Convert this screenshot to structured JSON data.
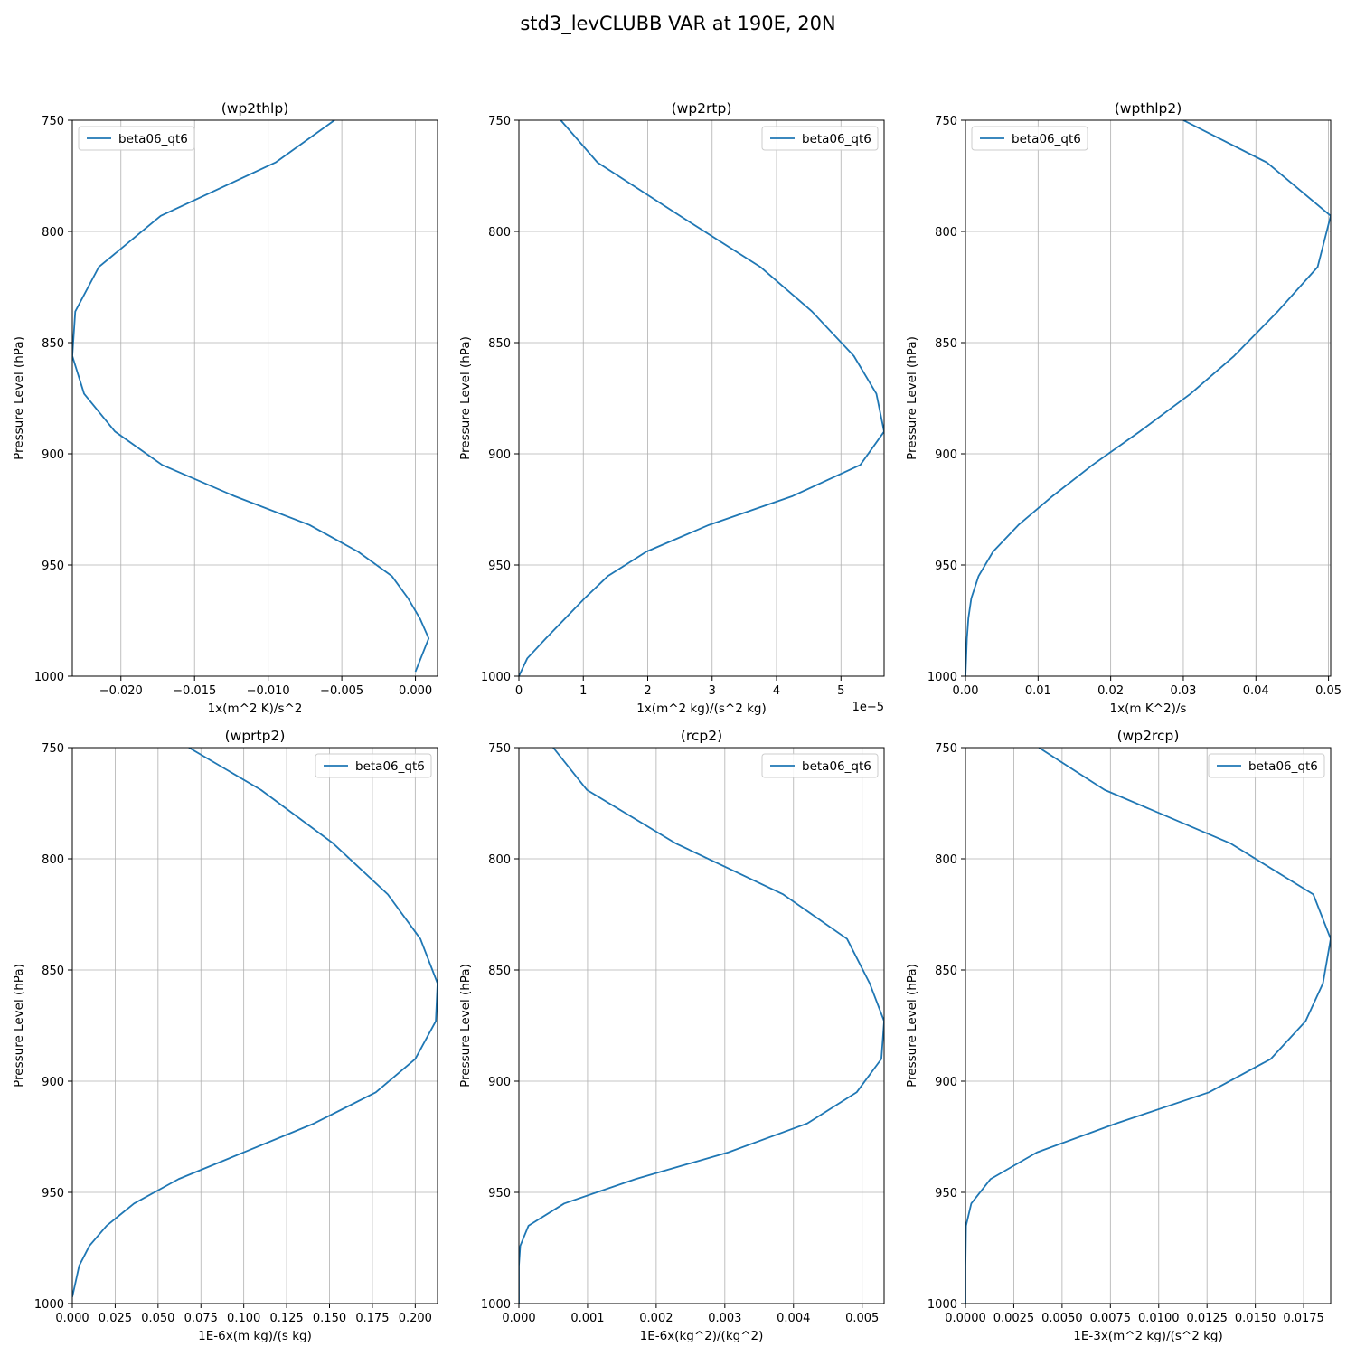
{
  "figure": {
    "title": "std3_levCLUBB VAR at 190E, 20N"
  },
  "colors": {
    "series": "#1f77b4",
    "grid": "#b0b0b0",
    "axis": "#000000",
    "legend_border": "#cccccc"
  },
  "chart_data": [
    {
      "type": "line",
      "title": "(wp2thlp)",
      "xlabel": "1x(m^2 K)/s^2",
      "ylabel": "Pressure Level (hPa)",
      "offset_text": "",
      "xlim": [
        -0.0233,
        0.0015
      ],
      "ylim": [
        1000,
        750
      ],
      "y_inverted": true,
      "xticks": [
        -0.02,
        -0.015,
        -0.01,
        -0.005,
        0.0
      ],
      "xtick_labels": [
        "−0.020",
        "−0.015",
        "−0.010",
        "−0.005",
        "0.000"
      ],
      "yticks": [
        750,
        800,
        850,
        900,
        950,
        1000
      ],
      "ytick_labels": [
        "750",
        "800",
        "850",
        "900",
        "950",
        "1000"
      ],
      "grid": true,
      "legend": "upper left",
      "series": [
        {
          "name": "beta06_qt6",
          "x": [
            -0.0055,
            -0.0095,
            -0.0173,
            -0.0215,
            -0.0231,
            -0.0233,
            -0.0225,
            -0.0204,
            -0.0172,
            -0.0123,
            -0.0072,
            -0.0039,
            -0.0016,
            -0.0005,
            0.0003,
            0.0009,
            0.0
          ],
          "y": [
            750,
            769,
            793,
            816,
            836,
            856,
            873,
            890,
            905,
            919,
            932,
            944,
            955,
            965,
            974,
            983,
            998
          ]
        }
      ]
    },
    {
      "type": "line",
      "title": "(wp2rtp)",
      "xlabel": "1x(m^2 kg)/(s^2 kg)",
      "ylabel": "Pressure Level (hPa)",
      "offset_text": "1e−5",
      "xlim": [
        0,
        5.67
      ],
      "ylim": [
        1000,
        750
      ],
      "y_inverted": true,
      "xticks": [
        0,
        1,
        2,
        3,
        4,
        5
      ],
      "xtick_labels": [
        "0",
        "1",
        "2",
        "3",
        "4",
        "5"
      ],
      "yticks": [
        750,
        800,
        850,
        900,
        950,
        1000
      ],
      "ytick_labels": [
        "750",
        "800",
        "850",
        "900",
        "950",
        "1000"
      ],
      "grid": true,
      "legend": "upper right",
      "series": [
        {
          "name": "beta06_qt6",
          "x": [
            0.65,
            1.22,
            2.5,
            3.75,
            4.55,
            5.2,
            5.55,
            5.67,
            5.3,
            4.25,
            2.95,
            1.98,
            1.38,
            1.02,
            0.72,
            0.42,
            0.13,
            0.0
          ],
          "y": [
            750,
            769,
            793,
            816,
            836,
            856,
            873,
            890,
            905,
            919,
            932,
            944,
            955,
            965,
            974,
            983,
            992,
            1000
          ]
        }
      ]
    },
    {
      "type": "line",
      "title": "(wpthlp2)",
      "xlabel": "1x(m K^2)/s",
      "ylabel": "Pressure Level (hPa)",
      "offset_text": "",
      "xlim": [
        0,
        0.0503
      ],
      "ylim": [
        1000,
        750
      ],
      "y_inverted": true,
      "xticks": [
        0.0,
        0.01,
        0.02,
        0.03,
        0.04,
        0.05
      ],
      "xtick_labels": [
        "0.00",
        "0.01",
        "0.02",
        "0.03",
        "0.04",
        "0.05"
      ],
      "yticks": [
        750,
        800,
        850,
        900,
        950,
        1000
      ],
      "ytick_labels": [
        "750",
        "800",
        "850",
        "900",
        "950",
        "1000"
      ],
      "grid": true,
      "legend": "upper left",
      "series": [
        {
          "name": "beta06_qt6",
          "x": [
            0.03,
            0.0415,
            0.0503,
            0.0485,
            0.043,
            0.037,
            0.031,
            0.024,
            0.0175,
            0.012,
            0.0073,
            0.0038,
            0.0018,
            0.0008,
            0.0004,
            0.0002,
            0.0001,
            0.0
          ],
          "y": [
            750,
            769,
            793,
            816,
            836,
            856,
            873,
            890,
            905,
            919,
            932,
            944,
            955,
            965,
            974,
            983,
            992,
            1000
          ]
        }
      ]
    },
    {
      "type": "line",
      "title": "(wprtp2)",
      "xlabel": "1E-6x(m kg)/(s kg)",
      "ylabel": "Pressure Level (hPa)",
      "offset_text": "",
      "xlim": [
        0,
        0.213
      ],
      "ylim": [
        1000,
        750
      ],
      "y_inverted": true,
      "xticks": [
        0.0,
        0.025,
        0.05,
        0.075,
        0.1,
        0.125,
        0.15,
        0.175,
        0.2
      ],
      "xtick_labels": [
        "0.000",
        "0.025",
        "0.050",
        "0.075",
        "0.100",
        "0.125",
        "0.150",
        "0.175",
        "0.200"
      ],
      "yticks": [
        750,
        800,
        850,
        900,
        950,
        1000
      ],
      "ytick_labels": [
        "750",
        "800",
        "850",
        "900",
        "950",
        "1000"
      ],
      "grid": true,
      "legend": "upper right",
      "series": [
        {
          "name": "beta06_qt6",
          "x": [
            0.068,
            0.11,
            0.152,
            0.184,
            0.203,
            0.213,
            0.212,
            0.2,
            0.177,
            0.141,
            0.1,
            0.062,
            0.036,
            0.02,
            0.01,
            0.004,
            0.0
          ],
          "y": [
            750,
            769,
            793,
            816,
            836,
            856,
            873,
            890,
            905,
            919,
            932,
            944,
            955,
            965,
            974,
            983,
            997
          ]
        }
      ]
    },
    {
      "type": "line",
      "title": "(rcp2)",
      "xlabel": "1E-6x(kg^2)/(kg^2)",
      "ylabel": "Pressure Level (hPa)",
      "offset_text": "",
      "xlim": [
        0,
        0.00532
      ],
      "ylim": [
        1000,
        750
      ],
      "y_inverted": true,
      "xticks": [
        0.0,
        0.001,
        0.002,
        0.003,
        0.004,
        0.005
      ],
      "xtick_labels": [
        "0.000",
        "0.001",
        "0.002",
        "0.003",
        "0.004",
        "0.005"
      ],
      "yticks": [
        750,
        800,
        850,
        900,
        950,
        1000
      ],
      "ytick_labels": [
        "750",
        "800",
        "850",
        "900",
        "950",
        "1000"
      ],
      "grid": true,
      "legend": "upper right",
      "series": [
        {
          "name": "beta06_qt6",
          "x": [
            0.0005,
            0.00099,
            0.00228,
            0.00385,
            0.00478,
            0.00511,
            0.00532,
            0.00528,
            0.00492,
            0.0042,
            0.00305,
            0.0017,
            0.00066,
            0.00014,
            2e-05,
            0.0,
            0.0
          ],
          "y": [
            750,
            769,
            793,
            816,
            836,
            856,
            873,
            890,
            905,
            919,
            932,
            944,
            955,
            965,
            974,
            983,
            1000
          ]
        }
      ]
    },
    {
      "type": "line",
      "title": "(wp2rcp)",
      "xlabel": "1E-3x(m^2 kg)/(s^2 kg)",
      "ylabel": "Pressure Level (hPa)",
      "offset_text": "",
      "xlim": [
        0,
        0.0189
      ],
      "ylim": [
        1000,
        750
      ],
      "y_inverted": true,
      "xticks": [
        0.0,
        0.0025,
        0.005,
        0.0075,
        0.01,
        0.0125,
        0.015,
        0.0175
      ],
      "xtick_labels": [
        "0.0000",
        "0.0025",
        "0.0050",
        "0.0075",
        "0.0100",
        "0.0125",
        "0.0150",
        "0.0175"
      ],
      "yticks": [
        750,
        800,
        850,
        900,
        950,
        1000
      ],
      "ytick_labels": [
        "750",
        "800",
        "850",
        "900",
        "950",
        "1000"
      ],
      "grid": true,
      "legend": "upper right",
      "series": [
        {
          "name": "beta06_qt6",
          "x": [
            0.0038,
            0.0072,
            0.0137,
            0.018,
            0.0189,
            0.0185,
            0.0176,
            0.0158,
            0.0126,
            0.0078,
            0.0037,
            0.0013,
            0.0003,
            3e-05,
            0.0,
            0.0
          ],
          "y": [
            750,
            769,
            793,
            816,
            836,
            856,
            873,
            890,
            905,
            919,
            932,
            944,
            955,
            965,
            983,
            1000
          ]
        }
      ]
    }
  ]
}
